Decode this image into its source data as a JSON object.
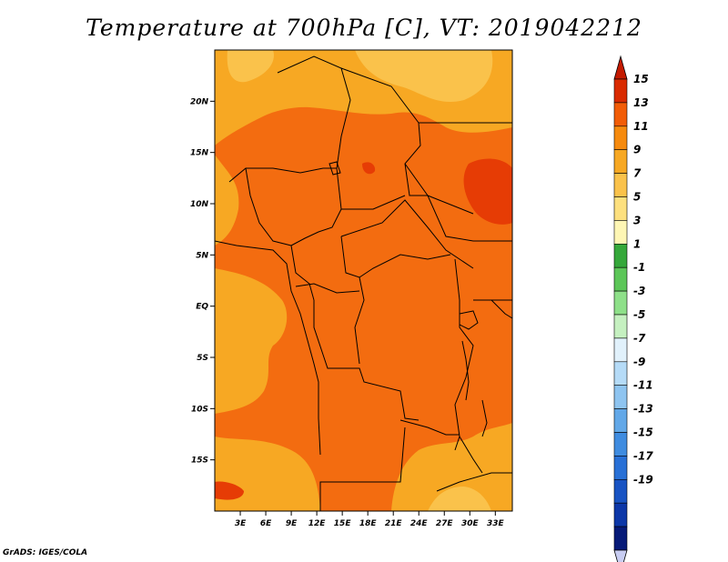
{
  "title": "Temperature at 700hPa [C], VT: 2019042212",
  "credit": "GrADS: IGES/COLA",
  "map": {
    "lat_range": [
      -20,
      25
    ],
    "lon_range": [
      0,
      35
    ],
    "lat_ticks": [
      {
        "value": 20,
        "label": "20N"
      },
      {
        "value": 15,
        "label": "15N"
      },
      {
        "value": 10,
        "label": "10N"
      },
      {
        "value": 5,
        "label": "5N"
      },
      {
        "value": 0,
        "label": "EQ"
      },
      {
        "value": -5,
        "label": "5S"
      },
      {
        "value": -10,
        "label": "10S"
      },
      {
        "value": -15,
        "label": "15S"
      }
    ],
    "lon_ticks": [
      {
        "value": 3,
        "label": "3E"
      },
      {
        "value": 6,
        "label": "6E"
      },
      {
        "value": 9,
        "label": "9E"
      },
      {
        "value": 12,
        "label": "12E"
      },
      {
        "value": 15,
        "label": "15E"
      },
      {
        "value": 18,
        "label": "18E"
      },
      {
        "value": 21,
        "label": "21E"
      },
      {
        "value": 24,
        "label": "24E"
      },
      {
        "value": 27,
        "label": "27E"
      },
      {
        "value": 30,
        "label": "30E"
      },
      {
        "value": 33,
        "label": "33E"
      }
    ]
  },
  "colorbar": {
    "levels": [
      "15",
      "13",
      "11",
      "9",
      "7",
      "5",
      "3",
      "1",
      "-1",
      "-3",
      "-5",
      "-7",
      "-9",
      "-11",
      "-13",
      "-15",
      "-17",
      "-19"
    ],
    "colors": [
      "#d92a00",
      "#f25c06",
      "#f68a0d",
      "#f7a823",
      "#fac24b",
      "#fde07e",
      "#fef6b4",
      "#35a83a",
      "#5cc658",
      "#8ee089",
      "#c5f0c0",
      "#e1f1fb",
      "#b5dbf7",
      "#8ec4f0",
      "#62a8e8",
      "#3f8ce0",
      "#2870d6",
      "#1853c3",
      "#0c37a8",
      "#061a78"
    ],
    "top_arrow_color": "#c41a00",
    "bottom_arrow_color": "#c8cdf2"
  }
}
